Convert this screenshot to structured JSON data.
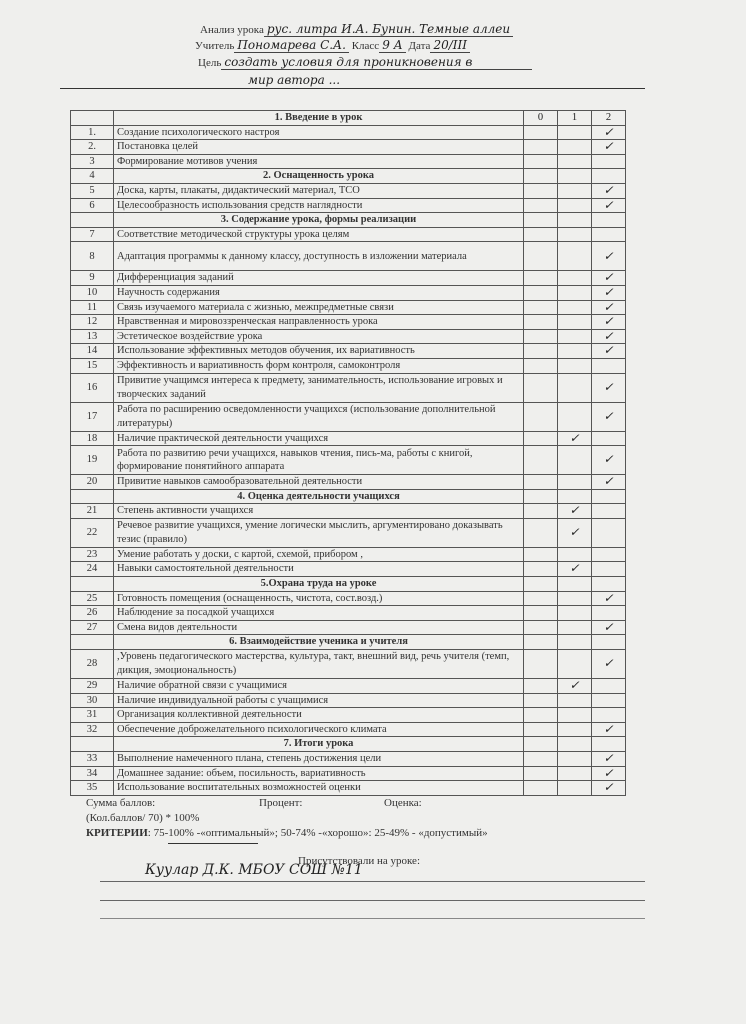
{
  "header": {
    "lesson_label": "Анализ урока",
    "lesson_value": "рус. литра  И.А. Бунин. Темные аллеи",
    "teacher_label": "Учитель",
    "teacher_value": "Пономарева С.А.",
    "class_label": "Класс",
    "class_value": "9 А",
    "date_label": "Дата",
    "date_value": "20/III",
    "goal_label": "Цель",
    "goal_value_1": "создать условия для проникновения в",
    "goal_value_2": "мир автора ..."
  },
  "table": {
    "score_columns": [
      "0",
      "1",
      "2"
    ],
    "rows": [
      {
        "type": "section",
        "num": "",
        "text": "1. Введение в урок",
        "head": true
      },
      {
        "num": "1.",
        "text": "Создание психологического настроя",
        "mark": 2
      },
      {
        "num": "2.",
        "text": "Постановка целей",
        "mark": 2
      },
      {
        "num": "3",
        "text": "Формирование мотивов учения"
      },
      {
        "type": "section",
        "num": "4",
        "text": "2. Оснащенность урока"
      },
      {
        "num": "5",
        "text": "Доска, карты, плакаты, дидактический материал, ТСО",
        "mark": 2
      },
      {
        "num": "6",
        "text": "Целесообразность использования средств наглядности",
        "mark": 2
      },
      {
        "type": "section",
        "num": "",
        "text": "3. Содержание урока, формы реализации"
      },
      {
        "num": "7",
        "text": "Соответствие методической структуры урока целям"
      },
      {
        "num": "8",
        "text": "Адаптация программы к данному классу, доступность в изложении материала",
        "mark": 2,
        "two": true
      },
      {
        "num": "9",
        "text": "Дифференциация заданий",
        "mark": 2
      },
      {
        "num": "10",
        "text": "Научность содержания",
        "mark": 2
      },
      {
        "num": "11",
        "text": "Связь изучаемого материала с жизнью, межпредметные связи",
        "mark": 2
      },
      {
        "num": "12",
        "text": "Нравственная и мировоззренческая направленность урока",
        "mark": 2
      },
      {
        "num": "13",
        "text": "Эстетическое воздействие урока",
        "mark": 2
      },
      {
        "num": "14",
        "text": "Использование эффективных методов обучения, их вариативность",
        "mark": 2
      },
      {
        "num": "15",
        "text": "Эффективность и вариативность форм контроля, самоконтроля"
      },
      {
        "num": "16",
        "text": "Привитие учащимся интереса к предмету, занимательность, использование игровых и творческих заданий",
        "mark": 2,
        "two": true
      },
      {
        "num": "17",
        "text": "Работа по расширению осведомленности учащихся (использование дополнительной литературы)",
        "mark": 2,
        "two": true
      },
      {
        "num": "18",
        "text": "Наличие практической деятельности учащихся",
        "mark": 1
      },
      {
        "num": "19",
        "text": "Работа по развитию речи учащихся, навыков чтения, пись-ма, работы с книгой, формирование понятийного аппарата",
        "mark": 2,
        "two": true
      },
      {
        "num": "20",
        "text": "Привитие навыков самообразовательной деятельности",
        "mark": 2
      },
      {
        "type": "section",
        "num": "",
        "text": "4. Оценка деятельности учащихся"
      },
      {
        "num": "21",
        "text": "Степень активности учащихся",
        "mark": 1
      },
      {
        "num": "22",
        "text": "Речевое развитие учащихся, умение логически мыслить, аргументировано доказывать тезис (правило)",
        "mark": 1,
        "two": true
      },
      {
        "num": "23",
        "text": "Умение работать у доски, с картой, схемой, прибором ,"
      },
      {
        "num": "24",
        "text": "Навыки самостоятельной деятельности",
        "mark": 1
      },
      {
        "type": "section",
        "num": "",
        "text": "5.Охрана труда на уроке"
      },
      {
        "num": "25",
        "text": "Готовность помещения (оснащенность, чистота, сост.возд.)",
        "mark": 2
      },
      {
        "num": "26",
        "text": "Наблюдение за посадкой учащихся"
      },
      {
        "num": "27",
        "text": "Смена видов деятельности",
        "mark": 2
      },
      {
        "type": "section",
        "num": "",
        "text": "6. Взаимодействие ученика и учителя"
      },
      {
        "num": "28",
        "text": ",Уровень педагогического мастерства, культура, такт, внешний вид, речь учителя (темп, дикция, эмоциональность)",
        "mark": 2,
        "two": true
      },
      {
        "num": "29",
        "text": "Наличие обратной связи с учащимися",
        "mark": 1
      },
      {
        "num": "30",
        "text": "Наличие индивидуальной работы с учащимися"
      },
      {
        "num": "31",
        "text": "Организация коллективной деятельности"
      },
      {
        "num": "32",
        "text": "Обеспечение доброжелательного психологического климата",
        "mark": 2
      },
      {
        "type": "section",
        "num": "",
        "text": "7. Итоги урока"
      },
      {
        "num": "33",
        "text": "Выполнение намеченного плана, степень достижения цели",
        "mark": 2
      },
      {
        "num": "34",
        "text": "Домашнее задание: объем, посильность, вариативность",
        "mark": 2
      },
      {
        "num": "35",
        "text": "Использование воспитательных возможностей оценки",
        "mark": 2
      }
    ],
    "check_mark": "✓"
  },
  "footer": {
    "sum_label": "Сумма баллов:",
    "percent_label": "Процент:",
    "grade_label": "Оценка:",
    "formula": "(Кол.баллов/ 70) * 100%",
    "criteria_label": "КРИТЕРИИ",
    "criteria_text": ": 75-100% -«оптимальный»; 50-74% -«хорошо»: 25-49% - «допустимый»",
    "attended_label": "Присутствовали на уроке:",
    "attended_value": "Куулар Д.К.  МБОУ СОШ №11"
  }
}
